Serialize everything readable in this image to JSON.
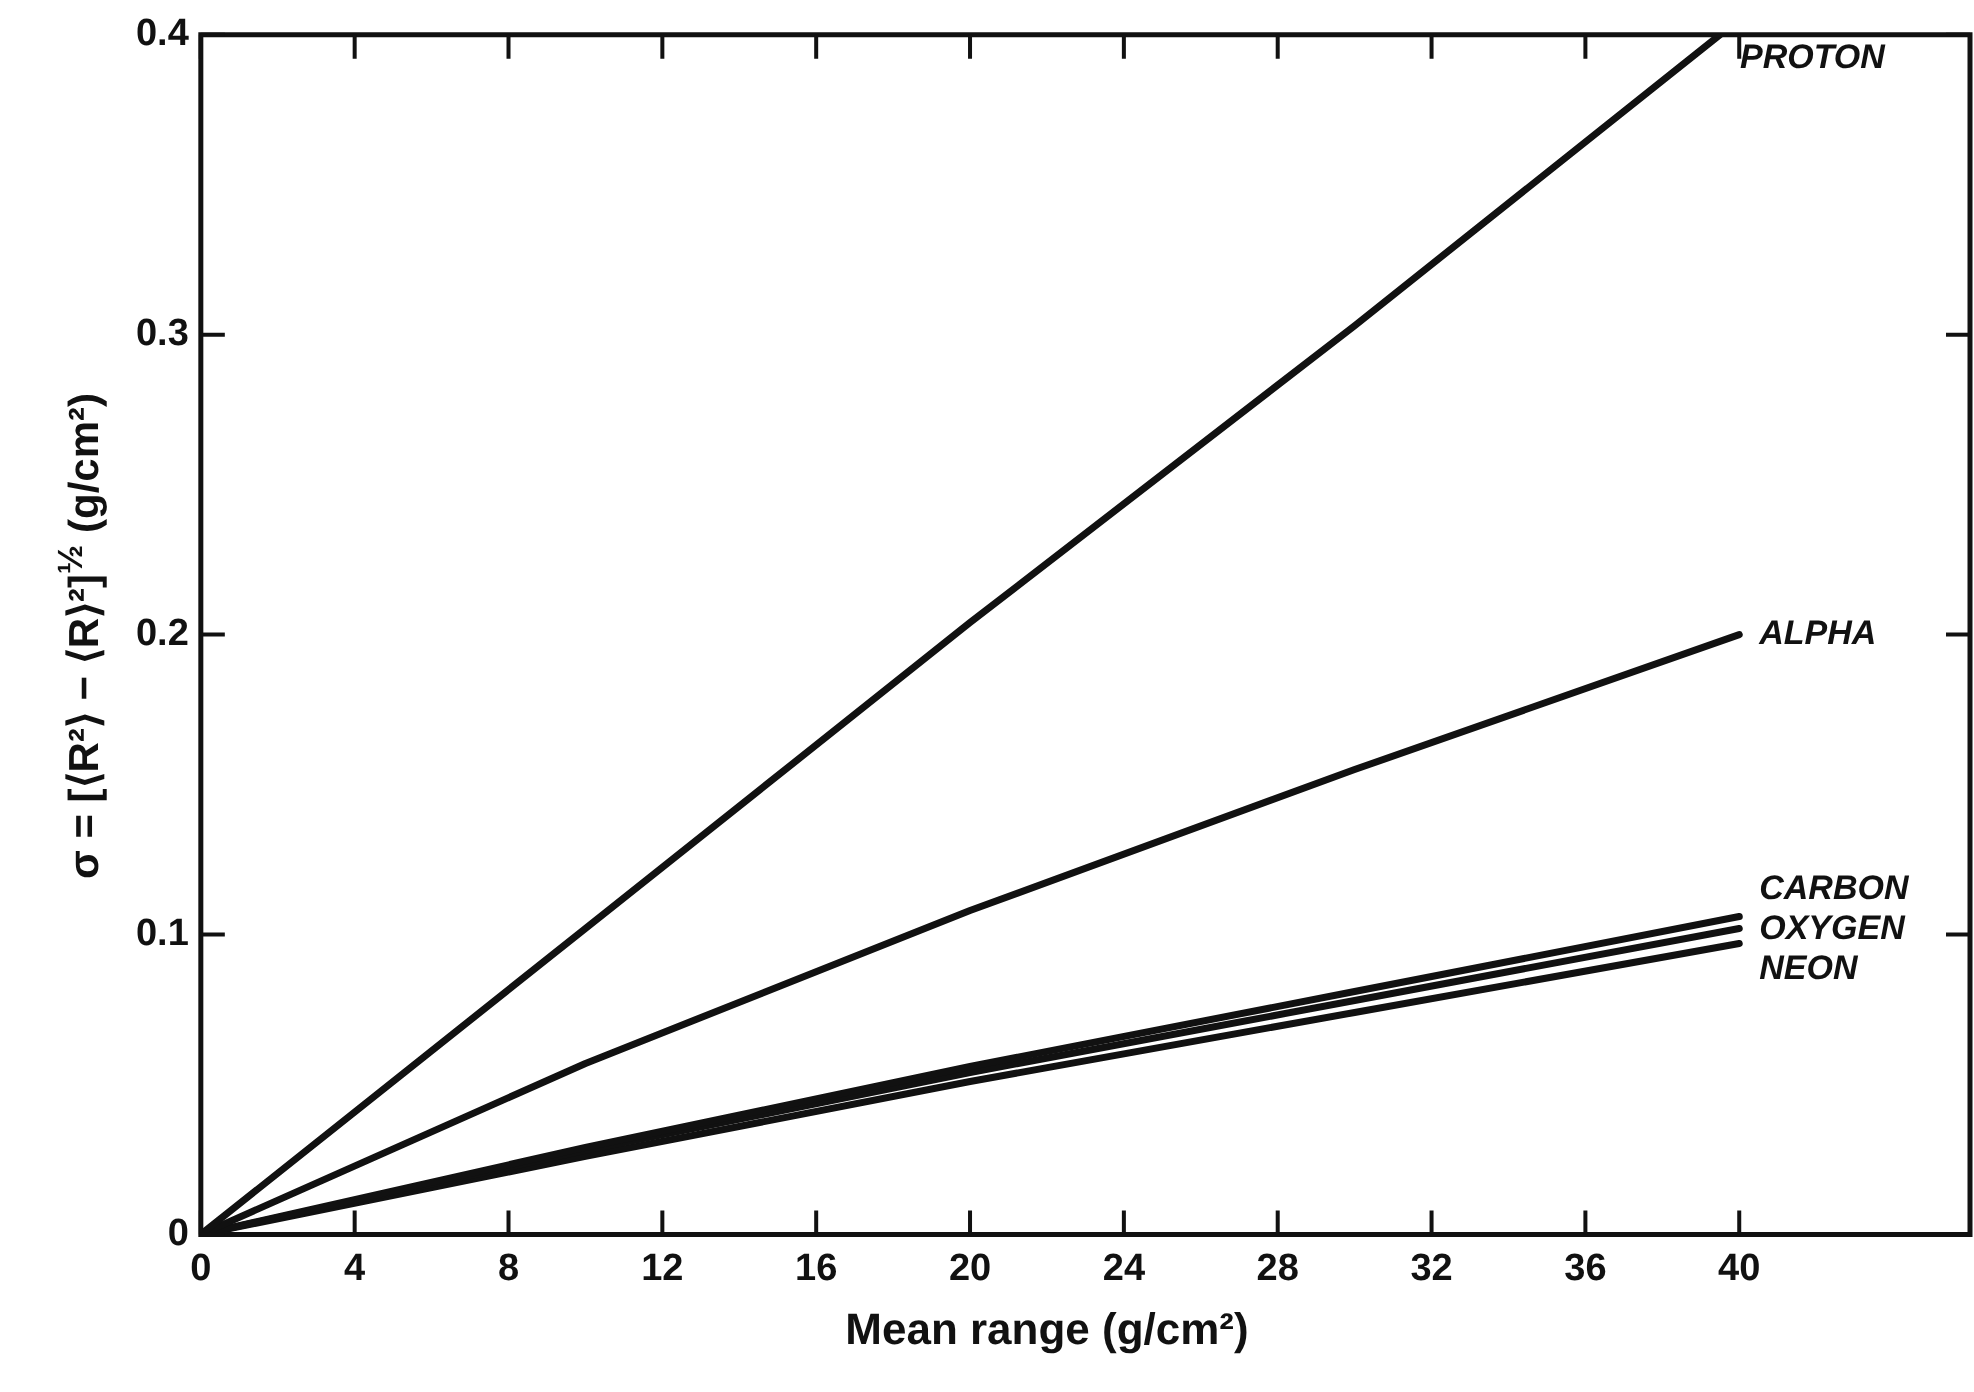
{
  "chart_data": {
    "type": "line",
    "xlabel": "Mean range (g/cm²)",
    "ylabel": "σ = [⟨R²⟩ − ⟨R⟩²]$^{½}$ (g/cm²)",
    "xlim": [
      0,
      46
    ],
    "ylim": [
      0,
      0.4
    ],
    "xticks": [
      0,
      4,
      8,
      12,
      16,
      20,
      24,
      28,
      32,
      36,
      40
    ],
    "yticks": [
      0,
      0.1,
      0.2,
      0.3,
      0.4
    ],
    "grid": false,
    "legend": "right",
    "marker": "none",
    "line_style": "solid",
    "series": [
      {
        "name": "PROTON",
        "color": "#111111",
        "x": [
          0,
          10,
          20,
          30,
          39.5
        ],
        "values": [
          0,
          0.102,
          0.204,
          0.303,
          0.4
        ]
      },
      {
        "name": "ALPHA",
        "color": "#111111",
        "x": [
          0,
          10,
          20,
          30,
          40
        ],
        "values": [
          0,
          0.057,
          0.108,
          0.155,
          0.2
        ]
      },
      {
        "name": "CARBON",
        "color": "#111111",
        "x": [
          0,
          10,
          20,
          30,
          40
        ],
        "values": [
          0,
          0.029,
          0.056,
          0.081,
          0.106
        ]
      },
      {
        "name": "OXYGEN",
        "color": "#111111",
        "x": [
          0,
          10,
          20,
          30,
          40
        ],
        "values": [
          0,
          0.028,
          0.054,
          0.078,
          0.102
        ]
      },
      {
        "name": "NEON",
        "color": "#111111",
        "x": [
          0,
          10,
          20,
          30,
          40
        ],
        "values": [
          0,
          0.026,
          0.051,
          0.074,
          0.097
        ]
      }
    ]
  }
}
